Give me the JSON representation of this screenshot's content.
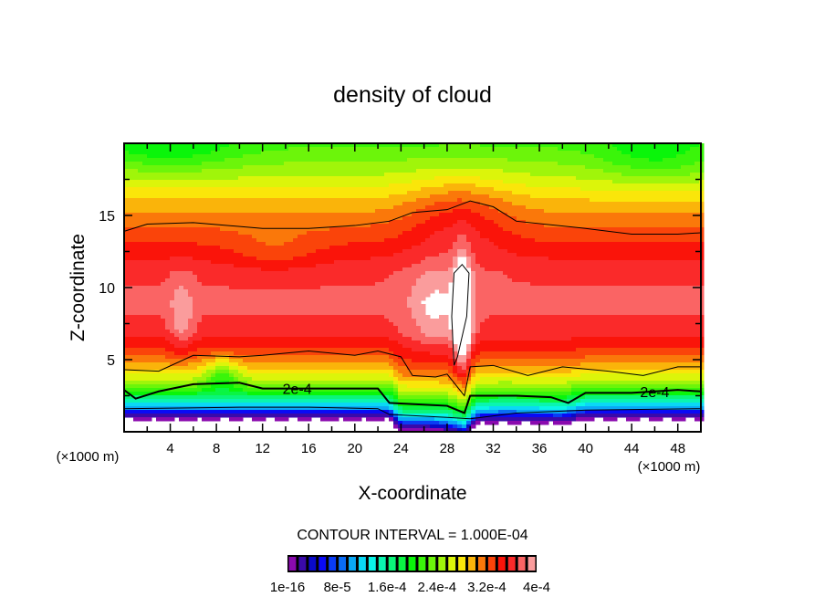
{
  "chart_data": {
    "type": "heatmap",
    "title": "density of cloud",
    "xlabel": "X-coordinate",
    "ylabel": "Z-coordinate",
    "x_unit": "(×1000 m)",
    "y_unit": "(×1000 m)",
    "xlim": [
      0,
      50
    ],
    "ylim": [
      0,
      20
    ],
    "x_ticks": [
      4,
      8,
      12,
      16,
      20,
      24,
      28,
      32,
      36,
      40,
      44,
      48
    ],
    "y_ticks": [
      5,
      10,
      15
    ],
    "contour_interval_text": "CONTOUR INTERVAL = 1.000E-04",
    "value_scale": "1e-4",
    "level_step": 0.16,
    "colors": [
      "#8a0aae",
      "#3a0aaa",
      "#0a0ac8",
      "#0a0af5",
      "#0a3cf5",
      "#0a6cf5",
      "#0aa8f5",
      "#0ad8f5",
      "#0af5e8",
      "#0af5b0",
      "#0af57a",
      "#0af544",
      "#0af50a",
      "#3af50a",
      "#6cf50a",
      "#a0f50a",
      "#dcf50a",
      "#fae60a",
      "#fab40a",
      "#fa780a",
      "#fa440a",
      "#fa140a",
      "#fa2a2a",
      "#fa6464",
      "#fa9c9c"
    ],
    "colorbar_labels": [
      "1e-16",
      "8e-5",
      "1.6e-4",
      "2.4e-4",
      "3.2e-4",
      "4e-4"
    ],
    "base_profile": {
      "z": [
        0,
        0.8,
        1.2,
        1.6,
        2.2,
        2.8,
        3.5,
        4.5,
        5.5,
        7,
        9,
        11,
        12.5,
        13.5,
        14.5,
        16,
        17.5,
        19,
        20
      ],
      "v": [
        0,
        0.05,
        0.25,
        0.95,
        1.6,
        2.05,
        2.5,
        2.95,
        3.3,
        3.62,
        3.72,
        3.65,
        3.45,
        3.3,
        3.15,
        2.9,
        2.6,
        2.35,
        2.2
      ]
    },
    "low_level_shift": [
      [
        0,
        0
      ],
      [
        20,
        0
      ],
      [
        23,
        0
      ],
      [
        24,
        -0.8
      ],
      [
        28,
        -0.9
      ],
      [
        29.5,
        -1.3
      ],
      [
        30.5,
        -0.3
      ],
      [
        33,
        -0.2
      ],
      [
        38,
        -0.3
      ],
      [
        40,
        0
      ],
      [
        50,
        0
      ]
    ],
    "features": [
      {
        "x": 29.3,
        "z": 8.2,
        "rx": 0.75,
        "rz": 3.6,
        "amp": 1.1
      },
      {
        "x": 27.0,
        "z": 8.5,
        "rx": 2.4,
        "rz": 3.0,
        "amp": 0.35
      },
      {
        "x": 5.0,
        "z": 8.0,
        "rx": 1.0,
        "rz": 2.6,
        "amp": 0.3
      },
      {
        "x": 29.0,
        "z": 15.0,
        "rx": 4.5,
        "rz": 3.0,
        "amp": 0.35
      },
      {
        "x": 46.0,
        "z": 19.0,
        "rx": 5.0,
        "rz": 1.8,
        "amp": -0.3
      },
      {
        "x": 4.0,
        "z": 19.5,
        "rx": 6.0,
        "rz": 1.5,
        "amp": -0.3
      },
      {
        "x": 13.0,
        "z": 12.5,
        "rx": 4.0,
        "rz": 1.5,
        "amp": -0.2
      },
      {
        "x": 8.5,
        "z": 4.0,
        "rx": 1.5,
        "rz": 1.2,
        "amp": -0.5
      }
    ],
    "contours": [
      {
        "level": "3e-4",
        "thick": false,
        "points": [
          [
            0,
            13.9
          ],
          [
            2,
            14.4
          ],
          [
            6,
            14.5
          ],
          [
            12,
            14.1
          ],
          [
            16,
            14.1
          ],
          [
            20,
            14.3
          ],
          [
            23,
            14.6
          ],
          [
            25,
            15.2
          ],
          [
            28,
            15.4
          ],
          [
            30,
            16.0
          ],
          [
            32,
            15.6
          ],
          [
            34,
            14.6
          ],
          [
            40,
            14.1
          ],
          [
            44,
            13.7
          ],
          [
            48,
            13.7
          ],
          [
            50,
            13.8
          ]
        ]
      },
      {
        "level": "3e-4",
        "thick": false,
        "points": [
          [
            0,
            4.3
          ],
          [
            3,
            4.2
          ],
          [
            6,
            5.3
          ],
          [
            10,
            5.2
          ],
          [
            12,
            5.3
          ],
          [
            16,
            5.6
          ],
          [
            20,
            5.3
          ],
          [
            22,
            5.6
          ],
          [
            24,
            5.2
          ],
          [
            25,
            3.9
          ],
          [
            27,
            3.8
          ],
          [
            28,
            4.0
          ],
          [
            29.5,
            2.5
          ],
          [
            30,
            4.5
          ],
          [
            32,
            4.6
          ],
          [
            35,
            3.9
          ],
          [
            38,
            4.5
          ],
          [
            42,
            4.2
          ],
          [
            45,
            3.9
          ],
          [
            48,
            4.5
          ],
          [
            50,
            4.5
          ]
        ]
      },
      {
        "level": "2e-4",
        "thick": true,
        "points": [
          [
            0,
            2.9
          ],
          [
            1,
            2.3
          ],
          [
            3,
            2.8
          ],
          [
            6,
            3.3
          ],
          [
            10,
            3.4
          ],
          [
            12,
            3.0
          ],
          [
            16,
            3.0
          ],
          [
            22,
            3.0
          ],
          [
            23,
            2.0
          ],
          [
            28,
            1.8
          ],
          [
            29.5,
            1.3
          ],
          [
            30,
            2.5
          ],
          [
            34,
            2.5
          ],
          [
            37,
            2.4
          ],
          [
            38.5,
            2.0
          ],
          [
            40,
            2.7
          ],
          [
            44,
            2.7
          ],
          [
            48,
            2.9
          ],
          [
            50,
            2.8
          ]
        ]
      },
      {
        "level": "1e-4",
        "thick": false,
        "points": [
          [
            0,
            1.6
          ],
          [
            10,
            1.7
          ],
          [
            16,
            1.7
          ],
          [
            22,
            1.6
          ],
          [
            23,
            1.2
          ],
          [
            28,
            1.0
          ],
          [
            30,
            0.9
          ],
          [
            34,
            1.3
          ],
          [
            40,
            1.5
          ],
          [
            50,
            1.6
          ]
        ]
      },
      {
        "level": "4e-4",
        "thick": false,
        "points": [
          [
            28.6,
            4.6
          ],
          [
            28.4,
            8
          ],
          [
            28.6,
            11
          ],
          [
            29.3,
            11.6
          ],
          [
            29.9,
            11
          ],
          [
            29.7,
            8
          ],
          [
            28.9,
            5.2
          ],
          [
            28.6,
            4.6
          ]
        ]
      }
    ],
    "contour_labels": [
      {
        "text": "2e-4",
        "x": 15,
        "z": 3.0
      },
      {
        "text": "2e-4",
        "x": 46,
        "z": 2.8
      }
    ]
  }
}
